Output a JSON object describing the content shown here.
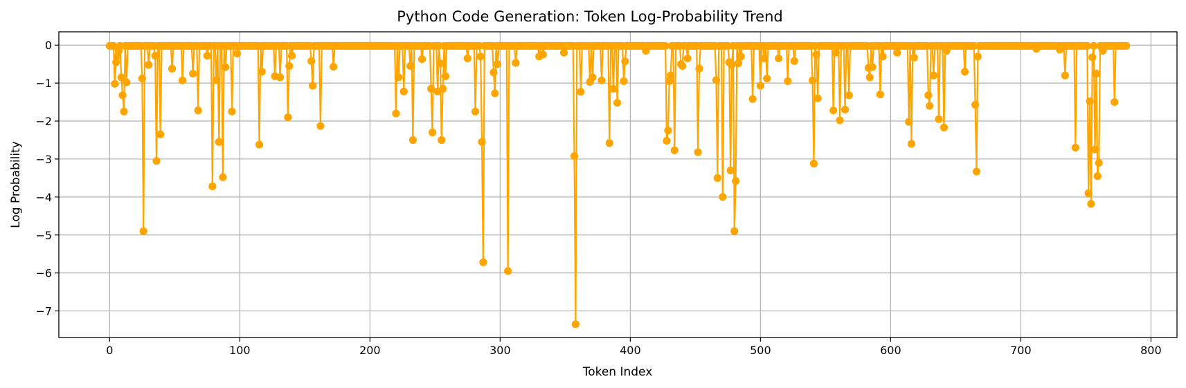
{
  "chart_data": {
    "type": "line",
    "title": "Python Code Generation: Token Log-Probability Trend",
    "xlabel": "Token Index",
    "ylabel": "Log Probability",
    "xlim": [
      -39,
      820
    ],
    "ylim": [
      -7.7,
      0.35
    ],
    "xticks": [
      0,
      100,
      200,
      300,
      400,
      500,
      600,
      700,
      800
    ],
    "yticks": [
      0,
      -1,
      -2,
      -3,
      -4,
      -5,
      -6,
      -7
    ],
    "xtick_labels": [
      "0",
      "100",
      "200",
      "300",
      "400",
      "500",
      "600",
      "700",
      "800"
    ],
    "ytick_labels": [
      "0",
      "−1",
      "−2",
      "−3",
      "−4",
      "−5",
      "−6",
      "−7"
    ],
    "grid": true,
    "legend": "none",
    "color": "#ffa500",
    "marker": "circle",
    "n_points": 782,
    "baseline_value": -0.02,
    "series": [
      {
        "values_sparse": [
          [
            4,
            -1.02
          ],
          [
            5,
            -0.45
          ],
          [
            6,
            -0.3
          ],
          [
            7,
            -0.15
          ],
          [
            9,
            -0.85
          ],
          [
            10,
            -1.32
          ],
          [
            11,
            -1.75
          ],
          [
            13,
            -0.98
          ],
          [
            25,
            -0.88
          ],
          [
            26,
            -4.9
          ],
          [
            30,
            -0.52
          ],
          [
            35,
            -0.28
          ],
          [
            36,
            -3.05
          ],
          [
            39,
            -2.35
          ],
          [
            48,
            -0.62
          ],
          [
            56,
            -0.93
          ],
          [
            64,
            -0.75
          ],
          [
            68,
            -1.72
          ],
          [
            75,
            -0.28
          ],
          [
            79,
            -3.72
          ],
          [
            82,
            -0.92
          ],
          [
            84,
            -2.55
          ],
          [
            87,
            -3.48
          ],
          [
            89,
            -0.58
          ],
          [
            94,
            -1.75
          ],
          [
            98,
            -0.22
          ],
          [
            115,
            -2.62
          ],
          [
            117,
            -0.7
          ],
          [
            127,
            -0.82
          ],
          [
            131,
            -0.85
          ],
          [
            137,
            -1.9
          ],
          [
            138,
            -0.55
          ],
          [
            140,
            -0.28
          ],
          [
            155,
            -0.42
          ],
          [
            156,
            -1.07
          ],
          [
            162,
            -2.13
          ],
          [
            172,
            -0.57
          ],
          [
            220,
            -1.8
          ],
          [
            222,
            -0.85
          ],
          [
            226,
            -1.22
          ],
          [
            231,
            -0.55
          ],
          [
            233,
            -2.5
          ],
          [
            240,
            -0.37
          ],
          [
            247,
            -1.15
          ],
          [
            248,
            -2.3
          ],
          [
            252,
            -1.22
          ],
          [
            254,
            -0.48
          ],
          [
            255,
            -2.5
          ],
          [
            256,
            -1.15
          ],
          [
            258,
            -0.82
          ],
          [
            275,
            -0.35
          ],
          [
            281,
            -1.75
          ],
          [
            285,
            -0.3
          ],
          [
            286,
            -2.55
          ],
          [
            287,
            -5.72
          ],
          [
            295,
            -0.72
          ],
          [
            296,
            -1.27
          ],
          [
            298,
            -0.5
          ],
          [
            306,
            -5.95
          ],
          [
            312,
            -0.47
          ],
          [
            330,
            -0.3
          ],
          [
            333,
            -0.25
          ],
          [
            349,
            -0.2
          ],
          [
            357,
            -2.92
          ],
          [
            358,
            -7.35
          ],
          [
            362,
            -1.23
          ],
          [
            369,
            -0.97
          ],
          [
            371,
            -0.85
          ],
          [
            378,
            -0.93
          ],
          [
            384,
            -2.58
          ],
          [
            387,
            -1.15
          ],
          [
            390,
            -1.52
          ],
          [
            395,
            -0.95
          ],
          [
            396,
            -0.43
          ],
          [
            412,
            -0.15
          ],
          [
            428,
            -2.52
          ],
          [
            429,
            -2.25
          ],
          [
            430,
            -0.95
          ],
          [
            431,
            -0.8
          ],
          [
            434,
            -2.77
          ],
          [
            439,
            -0.5
          ],
          [
            440,
            -0.55
          ],
          [
            444,
            -0.35
          ],
          [
            452,
            -2.82
          ],
          [
            453,
            -0.62
          ],
          [
            466,
            -0.92
          ],
          [
            467,
            -3.5
          ],
          [
            471,
            -4.0
          ],
          [
            476,
            -0.45
          ],
          [
            477,
            -3.3
          ],
          [
            478,
            -0.52
          ],
          [
            480,
            -4.9
          ],
          [
            481,
            -3.58
          ],
          [
            483,
            -0.48
          ],
          [
            485,
            -0.3
          ],
          [
            494,
            -1.42
          ],
          [
            500,
            -1.07
          ],
          [
            503,
            -0.35
          ],
          [
            505,
            -0.88
          ],
          [
            514,
            -0.35
          ],
          [
            521,
            -0.95
          ],
          [
            526,
            -0.42
          ],
          [
            540,
            -0.93
          ],
          [
            541,
            -3.12
          ],
          [
            543,
            -0.25
          ],
          [
            544,
            -1.4
          ],
          [
            556,
            -1.72
          ],
          [
            558,
            -0.2
          ],
          [
            561,
            -1.98
          ],
          [
            565,
            -1.7
          ],
          [
            568,
            -1.32
          ],
          [
            583,
            -0.6
          ],
          [
            584,
            -0.85
          ],
          [
            586,
            -0.58
          ],
          [
            592,
            -1.3
          ],
          [
            594,
            -0.3
          ],
          [
            605,
            -0.2
          ],
          [
            614,
            -2.02
          ],
          [
            616,
            -2.6
          ],
          [
            618,
            -0.33
          ],
          [
            629,
            -1.32
          ],
          [
            630,
            -1.6
          ],
          [
            633,
            -0.8
          ],
          [
            637,
            -1.95
          ],
          [
            641,
            -2.17
          ],
          [
            643,
            -0.15
          ],
          [
            657,
            -0.7
          ],
          [
            665,
            -1.57
          ],
          [
            666,
            -3.33
          ],
          [
            667,
            -0.3
          ],
          [
            712,
            -0.1
          ],
          [
            730,
            -0.12
          ],
          [
            734,
            -0.8
          ],
          [
            742,
            -2.7
          ],
          [
            752,
            -3.9
          ],
          [
            753,
            -1.48
          ],
          [
            754,
            -4.18
          ],
          [
            755,
            -0.32
          ],
          [
            757,
            -2.75
          ],
          [
            758,
            -0.75
          ],
          [
            759,
            -3.45
          ],
          [
            760,
            -3.1
          ],
          [
            763,
            -0.15
          ],
          [
            772,
            -1.5
          ]
        ]
      }
    ]
  }
}
